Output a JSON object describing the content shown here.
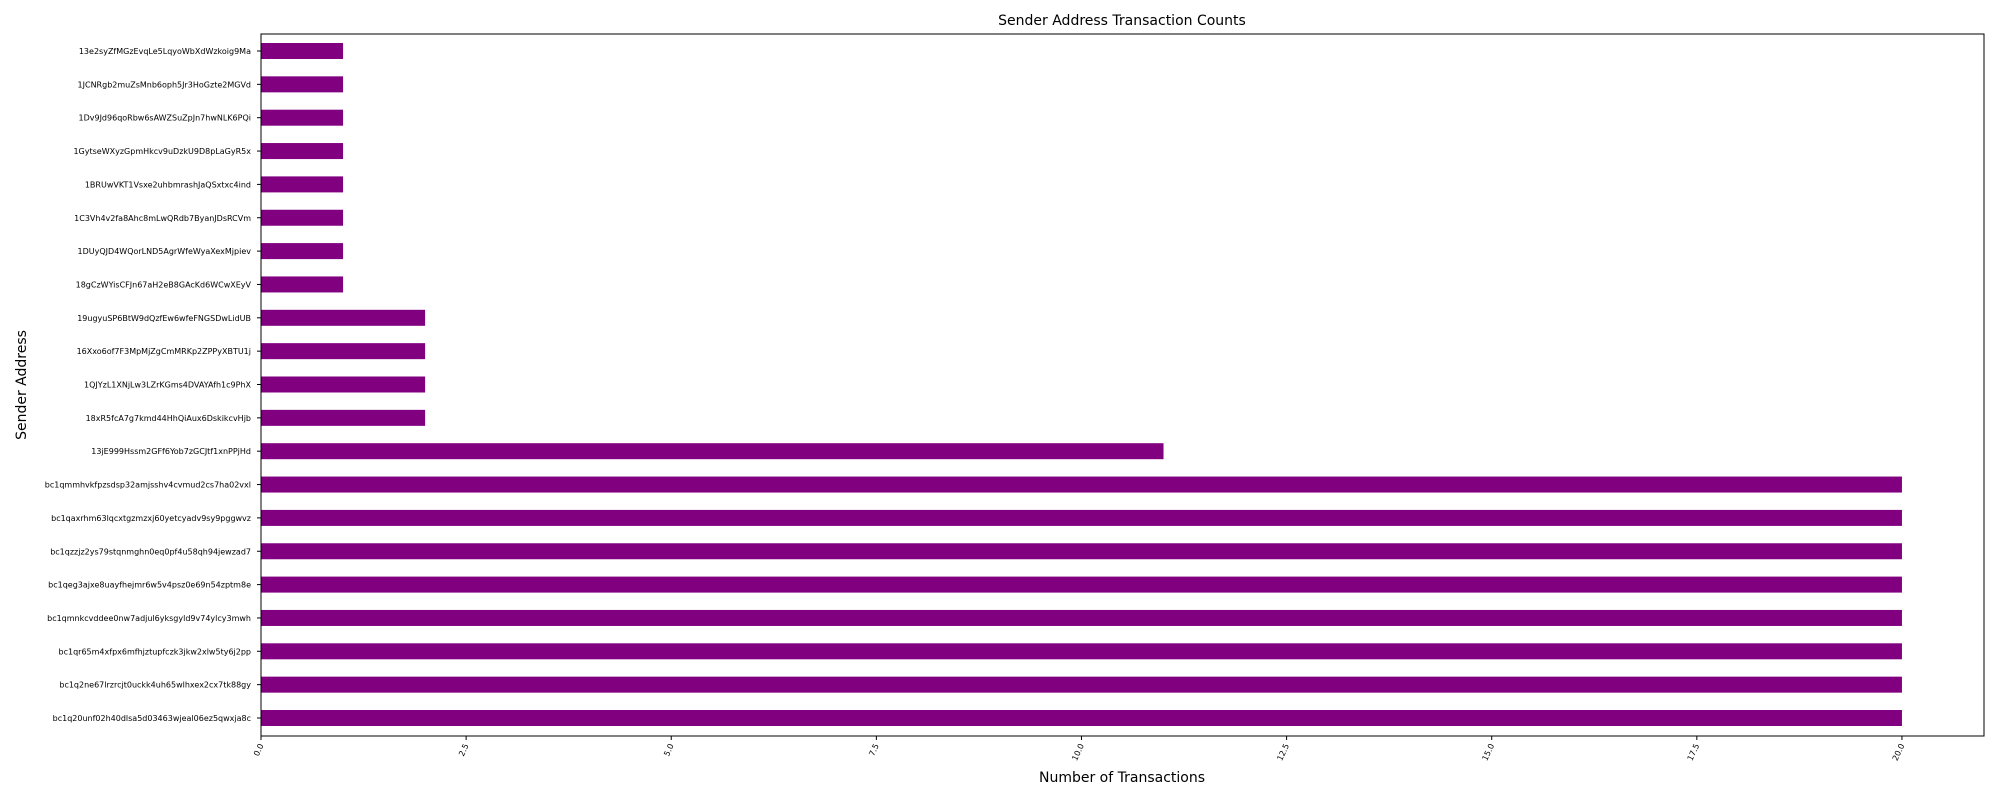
{
  "chart_data": {
    "type": "bar",
    "orientation": "horizontal",
    "title": "Sender Address Transaction Counts",
    "xlabel": "Number of Transactions",
    "ylabel": "Sender Address",
    "xlim": [
      0,
      21
    ],
    "xticks": [
      "0.0",
      "2.5",
      "5.0",
      "7.5",
      "10.0",
      "12.5",
      "15.0",
      "17.5",
      "20.0"
    ],
    "xtick_values": [
      0,
      2.5,
      5,
      7.5,
      10,
      12.5,
      15,
      17.5,
      20
    ],
    "bar_color": "#800080",
    "grid": false,
    "categories": [
      "13e2syZfMGzEvqLe5LqyoWbXdWzkoig9Ma",
      "1JCNRgb2muZsMnb6oph5Jr3HoGzte2MGVd",
      "1Dv9Jd96qoRbw6sAWZSuZpJn7hwNLK6PQi",
      "1GytseWXyzGpmHkcv9uDzkU9D8pLaGyR5x",
      "1BRUwVKT1Vsxe2uhbmrashJaQSxtxc4ind",
      "1C3Vh4v2fa8Ahc8mLwQRdb7ByanJDsRCVm",
      "1DUyQJD4WQorLND5AgrWfeWyaXexMjpiev",
      "18gCzWYisCFJn67aH2eB8GAcKd6WCwXEyV",
      "19ugyuSP6BtW9dQzfEw6wfeFNGSDwLidUB",
      "16Xxo6of7F3MpMjZgCmMRKp2ZPPyXBTU1j",
      "1QJYzL1XNjLw3LZrKGms4DVAYAfh1c9PhX",
      "18xR5fcA7g7kmd44HhQiAux6DskikcvHjb",
      "13jE999Hssm2GFf6Yob7zGCJtf1xnPPjHd",
      "bc1qmmhvkfpzsdsp32amjsshv4cvmud2cs7ha02vxl",
      "bc1qaxrhm63lqcxtgzmzxj60yetcyadv9sy9pggwvz",
      "bc1qzzjz2ys79stqnmghn0eq0pf4u58qh94jewzad7",
      "bc1qeg3ajxe8uayfhejmr6w5v4psz0e69n54zptm8e",
      "bc1qmnkcvddee0nw7adjul6yksgyld9v74ylcy3mwh",
      "bc1qr65m4xfpx6mfhjztupfczk3jkw2xlw5ty6j2pp",
      "bc1q2ne67lrzrcjt0uckk4uh65wlhxex2cx7tk88gy",
      "bc1q20unf02h40dlsa5d03463wjeal06ez5qwxja8c"
    ],
    "values": [
      1,
      1,
      1,
      1,
      1,
      1,
      1,
      1,
      2,
      2,
      2,
      2,
      11,
      20,
      20,
      20,
      20,
      20,
      20,
      20,
      20
    ]
  }
}
